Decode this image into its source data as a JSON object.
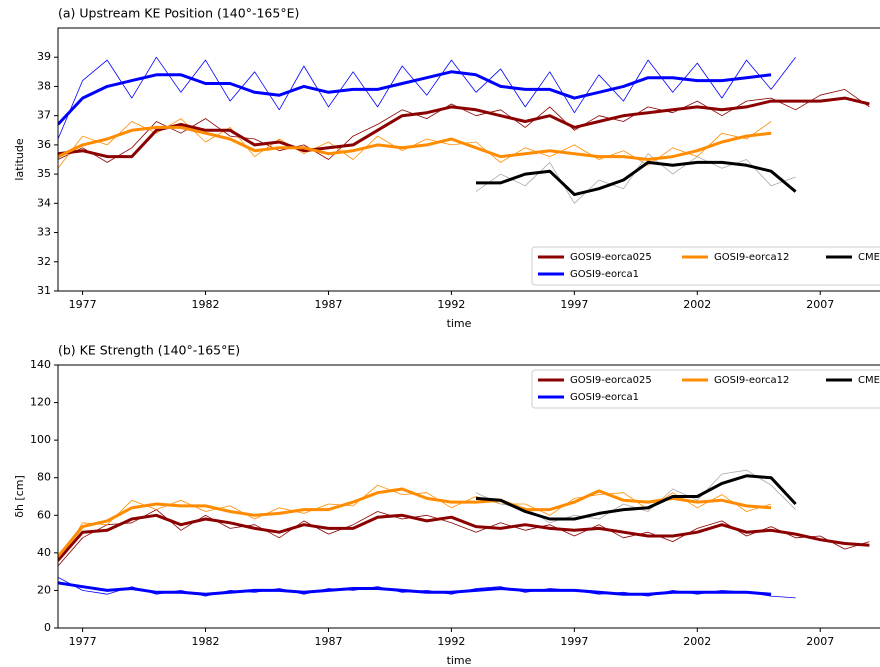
{
  "chart_data": [
    {
      "type": "line",
      "title": "(a) Upstream KE Position (140°-165°E)",
      "xlabel": "time",
      "ylabel": "latitude",
      "xlim": [
        1976,
        2010
      ],
      "xticks": [
        1977,
        1982,
        1987,
        1992,
        1997,
        2002,
        2007
      ],
      "ylim": [
        31,
        40
      ],
      "yticks": [
        31,
        32,
        33,
        34,
        35,
        36,
        37,
        38,
        39
      ],
      "legend": "lower right",
      "legend_columns": 3,
      "x": [
        1976,
        1977,
        1978,
        1979,
        1980,
        1981,
        1982,
        1983,
        1984,
        1985,
        1986,
        1987,
        1988,
        1989,
        1990,
        1991,
        1992,
        1993,
        1994,
        1995,
        1996,
        1997,
        1998,
        1999,
        2000,
        2001,
        2002,
        2003,
        2004,
        2005,
        2006,
        2007,
        2008,
        2009
      ],
      "series": [
        {
          "name": "GOSI9-eorca025",
          "color": "#8b0000",
          "raw_color": "#8b0000",
          "values": [
            35.7,
            35.8,
            35.6,
            35.6,
            36.5,
            36.7,
            36.5,
            36.5,
            36.0,
            36.1,
            35.8,
            35.9,
            36.0,
            36.5,
            37.0,
            37.1,
            37.3,
            37.2,
            37.0,
            36.8,
            37.0,
            36.6,
            36.8,
            37.0,
            37.1,
            37.2,
            37.3,
            37.2,
            37.3,
            37.5,
            37.5,
            37.5,
            37.6,
            37.4
          ],
          "raw": [
            35.5,
            35.9,
            35.4,
            35.9,
            36.8,
            36.4,
            36.9,
            36.3,
            36.2,
            35.8,
            36.0,
            35.5,
            36.3,
            36.7,
            37.2,
            36.9,
            37.4,
            37.0,
            37.2,
            36.6,
            37.3,
            36.5,
            37.0,
            36.8,
            37.3,
            37.1,
            37.5,
            37.0,
            37.5,
            37.6,
            37.2,
            37.7,
            37.9,
            37.3
          ]
        },
        {
          "name": "GOSI9-eorca1",
          "color": "#0000ff",
          "raw_color": "#0000ff",
          "values": [
            36.7,
            37.6,
            38.0,
            38.2,
            38.4,
            38.4,
            38.1,
            38.1,
            37.8,
            37.7,
            38.0,
            37.8,
            37.9,
            37.9,
            38.1,
            38.3,
            38.5,
            38.4,
            38.0,
            37.9,
            37.9,
            37.6,
            37.8,
            38.0,
            38.3,
            38.3,
            38.2,
            38.2,
            38.3,
            38.4,
            null,
            null,
            null,
            null
          ],
          "raw": [
            36.2,
            38.2,
            38.9,
            37.6,
            39.0,
            37.8,
            38.9,
            37.5,
            38.5,
            37.2,
            38.7,
            37.3,
            38.5,
            37.3,
            38.7,
            37.7,
            38.9,
            37.8,
            38.6,
            37.3,
            38.5,
            37.1,
            38.4,
            37.5,
            38.9,
            37.8,
            38.8,
            37.6,
            38.9,
            37.9,
            39.0,
            null,
            null,
            null
          ]
        },
        {
          "name": "GOSI9-eorca12",
          "color": "#ff8c00",
          "raw_color": "#ff8c00",
          "values": [
            35.6,
            36.0,
            36.2,
            36.5,
            36.6,
            36.6,
            36.4,
            36.2,
            35.8,
            35.9,
            35.9,
            35.7,
            35.8,
            36.0,
            35.9,
            36.0,
            36.2,
            35.9,
            35.6,
            35.7,
            35.8,
            35.7,
            35.6,
            35.6,
            35.5,
            35.6,
            35.8,
            36.1,
            36.3,
            36.4,
            null,
            null,
            null,
            null
          ],
          "raw": [
            35.2,
            36.3,
            36.0,
            36.8,
            36.4,
            36.9,
            36.1,
            36.6,
            35.6,
            36.2,
            35.7,
            36.1,
            35.5,
            36.3,
            35.8,
            36.2,
            36.0,
            36.1,
            35.4,
            35.9,
            35.6,
            36.0,
            35.5,
            35.8,
            35.3,
            35.9,
            35.6,
            36.4,
            36.2,
            36.8,
            null,
            null,
            null,
            null
          ]
        },
        {
          "name": "CMEMS",
          "color": "#000000",
          "raw_color": "#aaaaaa",
          "values": [
            null,
            null,
            null,
            null,
            null,
            null,
            null,
            null,
            null,
            null,
            null,
            null,
            null,
            null,
            null,
            null,
            null,
            34.7,
            34.7,
            35.0,
            35.1,
            34.3,
            34.5,
            34.8,
            35.4,
            35.3,
            35.4,
            35.4,
            35.3,
            35.1,
            34.4,
            null,
            null,
            null
          ],
          "raw": [
            null,
            null,
            null,
            null,
            null,
            null,
            null,
            null,
            null,
            null,
            null,
            null,
            null,
            null,
            null,
            null,
            null,
            34.4,
            35.0,
            34.6,
            35.4,
            34.0,
            34.8,
            34.5,
            35.7,
            35.0,
            35.6,
            35.2,
            35.5,
            34.6,
            34.9,
            null,
            null,
            null
          ]
        }
      ]
    },
    {
      "type": "line",
      "title": "(b) KE Strength (140°-165°E)",
      "xlabel": "time",
      "ylabel": "δh [cm]",
      "xlim": [
        1976,
        2010
      ],
      "xticks": [
        1977,
        1982,
        1987,
        1992,
        1997,
        2002,
        2007
      ],
      "ylim": [
        0,
        140
      ],
      "yticks": [
        0,
        20,
        40,
        60,
        80,
        100,
        120,
        140
      ],
      "legend": "upper right",
      "legend_columns": 3,
      "x": [
        1976,
        1977,
        1978,
        1979,
        1980,
        1981,
        1982,
        1983,
        1984,
        1985,
        1986,
        1987,
        1988,
        1989,
        1990,
        1991,
        1992,
        1993,
        1994,
        1995,
        1996,
        1997,
        1998,
        1999,
        2000,
        2001,
        2002,
        2003,
        2004,
        2005,
        2006,
        2007,
        2008,
        2009
      ],
      "series": [
        {
          "name": "GOSI9-eorca025",
          "color": "#8b0000",
          "raw_color": "#8b0000",
          "values": [
            36,
            51,
            52,
            58,
            60,
            55,
            58,
            56,
            53,
            51,
            55,
            53,
            53,
            59,
            60,
            57,
            59,
            54,
            53,
            55,
            53,
            52,
            53,
            51,
            49,
            49,
            51,
            55,
            51,
            52,
            50,
            47,
            45,
            44
          ],
          "raw": [
            33,
            48,
            55,
            56,
            63,
            52,
            60,
            53,
            55,
            48,
            57,
            50,
            55,
            62,
            58,
            60,
            56,
            51,
            56,
            52,
            55,
            49,
            55,
            48,
            51,
            46,
            53,
            57,
            49,
            54,
            48,
            49,
            42,
            46
          ]
        },
        {
          "name": "GOSI9-eorca1",
          "color": "#0000ff",
          "raw_color": "#0000ff",
          "values": [
            24,
            22,
            20,
            21,
            19,
            19,
            18,
            19,
            20,
            20,
            19,
            20,
            21,
            21,
            20,
            19,
            19,
            20,
            21,
            20,
            20,
            20,
            19,
            18,
            18,
            19,
            19,
            19,
            19,
            18,
            null,
            null,
            null,
            null
          ],
          "raw": [
            27,
            20,
            18,
            22,
            18,
            20,
            17,
            20,
            19,
            21,
            18,
            21,
            20,
            22,
            19,
            20,
            18,
            21,
            22,
            19,
            21,
            20,
            18,
            19,
            17,
            20,
            18,
            20,
            19,
            17,
            16,
            null,
            null,
            null
          ]
        },
        {
          "name": "GOSI9-eorca12",
          "color": "#ff8c00",
          "raw_color": "#ff8c00",
          "values": [
            38,
            54,
            57,
            64,
            66,
            65,
            65,
            62,
            60,
            61,
            63,
            63,
            67,
            72,
            74,
            69,
            67,
            67,
            68,
            63,
            63,
            67,
            73,
            68,
            67,
            69,
            67,
            68,
            65,
            64,
            null,
            null,
            null,
            null
          ],
          "raw": [
            35,
            56,
            55,
            68,
            63,
            68,
            62,
            65,
            58,
            64,
            61,
            66,
            65,
            76,
            71,
            72,
            64,
            70,
            66,
            66,
            60,
            69,
            71,
            72,
            63,
            72,
            64,
            71,
            62,
            66,
            null,
            null,
            null,
            null
          ]
        },
        {
          "name": "CMEMS",
          "color": "#000000",
          "raw_color": "#aaaaaa",
          "values": [
            null,
            null,
            null,
            null,
            null,
            null,
            null,
            null,
            null,
            null,
            null,
            null,
            null,
            null,
            null,
            null,
            null,
            69,
            68,
            62,
            58,
            58,
            61,
            63,
            64,
            70,
            70,
            77,
            81,
            80,
            66,
            null,
            null,
            null
          ],
          "raw": [
            null,
            null,
            null,
            null,
            null,
            null,
            null,
            null,
            null,
            null,
            null,
            null,
            null,
            null,
            null,
            null,
            null,
            72,
            66,
            64,
            56,
            60,
            58,
            66,
            62,
            74,
            68,
            82,
            84,
            76,
            63,
            null,
            null,
            null
          ]
        }
      ]
    }
  ]
}
